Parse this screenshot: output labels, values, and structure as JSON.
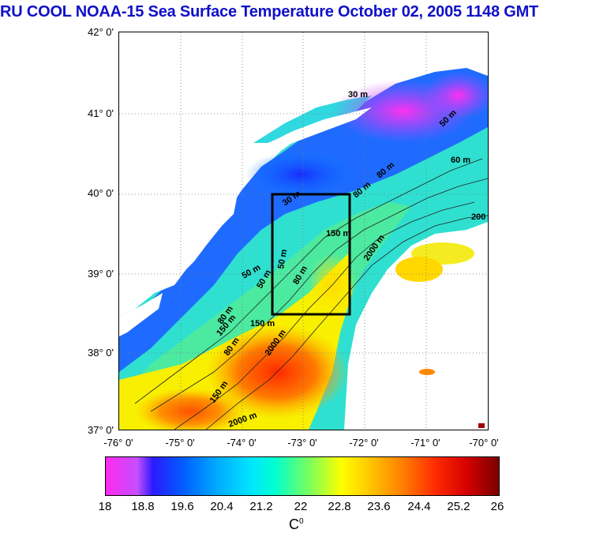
{
  "title": "RU COOL  NOAA-15 Sea Surface Temperature October 02, 2005 1148 GMT",
  "map": {
    "lat_labels": [
      "42° 0'",
      "41° 0'",
      "40° 0'",
      "39° 0'",
      "38° 0'",
      "37° 0'"
    ],
    "lon_labels": [
      "-76° 0'",
      "-75° 0'",
      "-74° 0'",
      "-73° 0'",
      "-72° 0'",
      "-71° 0'",
      "-70° 0'"
    ],
    "contour_labels": [
      "30 m",
      "50 m",
      "80 m",
      "80 m",
      "60 m",
      "30 m",
      "150 m",
      "50 m",
      "80 m",
      "2000 m",
      "50 m",
      "50 m",
      "80 m",
      "150 m",
      "150 m",
      "80 m",
      "2000 m",
      "150 m",
      "2000 m",
      "200"
    ],
    "box": {
      "lon_min": -73.5,
      "lon_max": -72.3,
      "lat_min": 38.5,
      "lat_max": 40.0
    }
  },
  "colorbar": {
    "ticks": [
      "18",
      "18.8",
      "19.6",
      "20.4",
      "21.2",
      "22",
      "22.8",
      "23.6",
      "24.4",
      "25.2",
      "26"
    ],
    "unit": "C",
    "unit_sup": "0",
    "colors": {
      "low": "#ff29ee",
      "mid": "#00ffd0",
      "high": "#7a0000"
    }
  }
}
